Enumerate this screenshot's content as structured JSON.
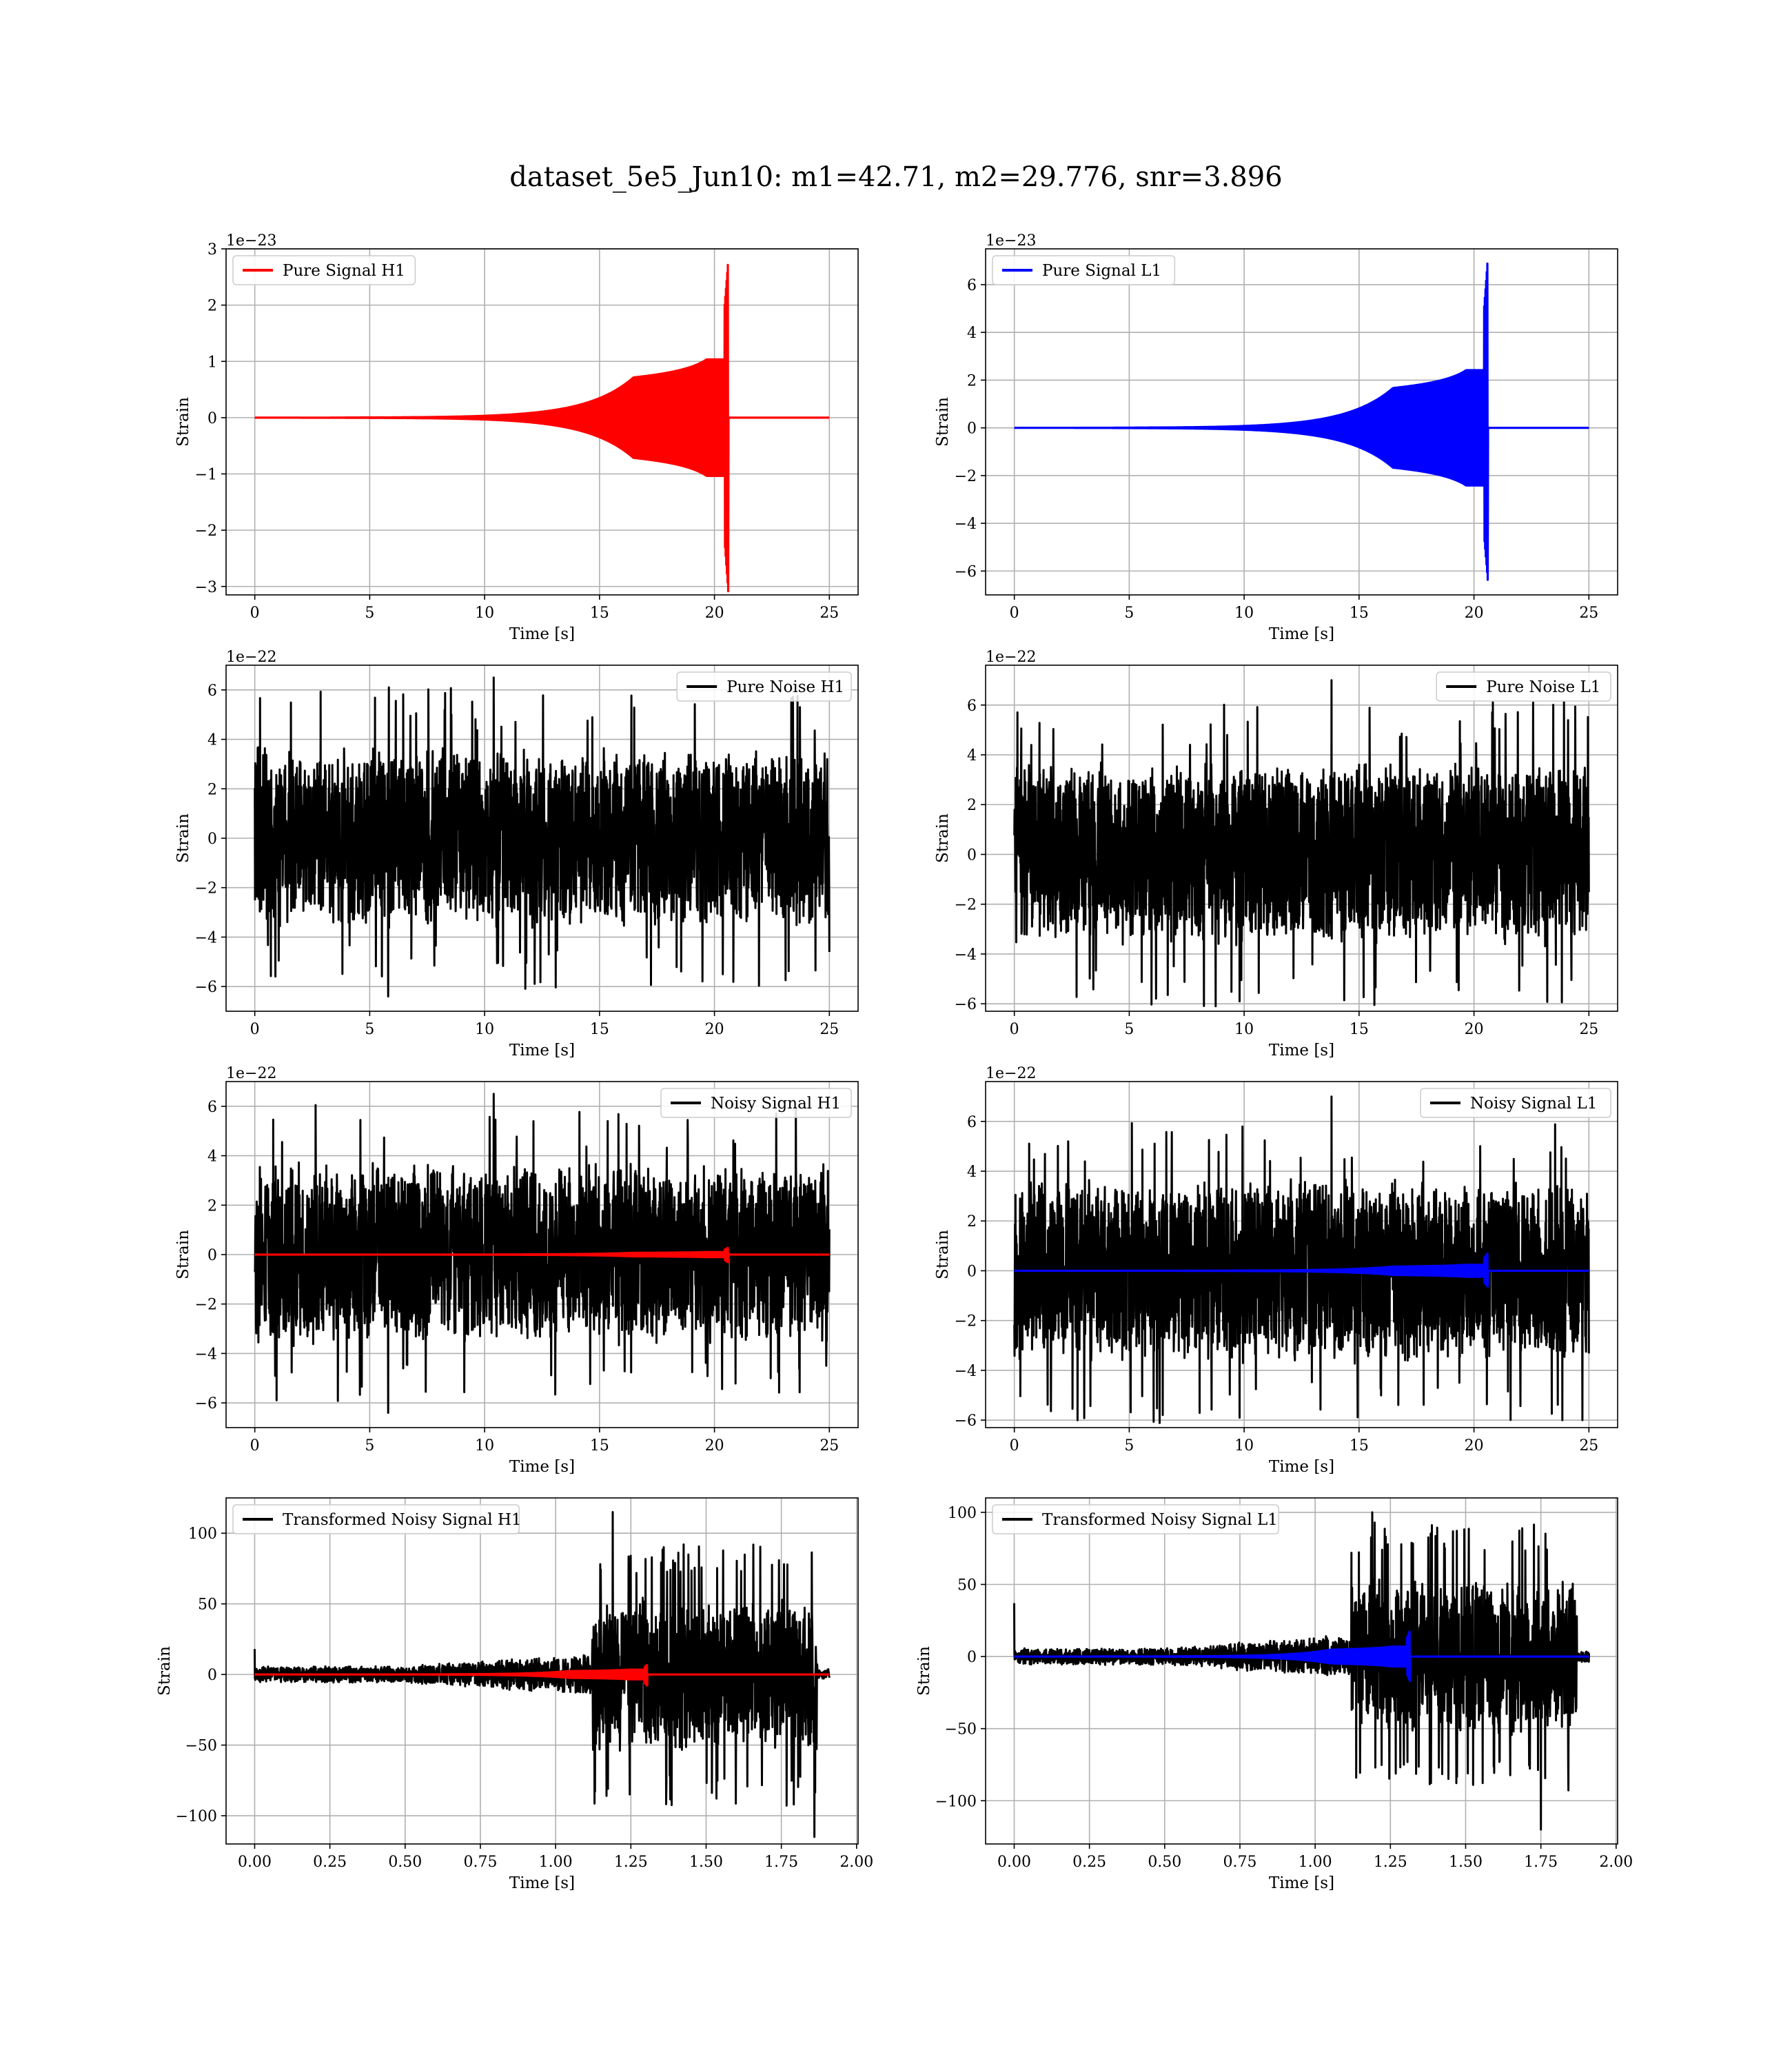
{
  "figure": {
    "title": "dataset_5e5_Jun10: m1=42.71, m2=29.776, snr=3.896"
  },
  "colors": {
    "h1": "#ff0000",
    "l1": "#0000ff",
    "noise": "#000000",
    "grid": "#b0b0b0"
  },
  "chart_data": [
    {
      "id": "pure-signal-h1",
      "type": "line",
      "xlabel": "Time [s]",
      "ylabel": "Strain",
      "offset_label": "1e−23",
      "xlim": [
        -1.25,
        26.25
      ],
      "ylim": [
        -3.15,
        3.0
      ],
      "xticks": [
        0,
        5,
        10,
        15,
        20,
        25
      ],
      "xtick_labels": [
        "0",
        "5",
        "10",
        "15",
        "20",
        "25"
      ],
      "yticks": [
        -3,
        -2,
        -1,
        0,
        1,
        2,
        3
      ],
      "ytick_labels": [
        "−3",
        "−2",
        "−1",
        "0",
        "1",
        "2",
        "3"
      ],
      "legend": {
        "label": "Pure Signal H1",
        "position": "upper-left",
        "color": "#ff0000"
      },
      "series": [
        {
          "name": "Pure Signal H1",
          "kind": "chirp",
          "color": "#ff0000",
          "t_start": 0,
          "t_end": 25,
          "t_merge": 20.6,
          "peak_pos": 2.8,
          "peak_neg": -3.1,
          "plateau": 0.9
        }
      ]
    },
    {
      "id": "pure-signal-l1",
      "type": "line",
      "xlabel": "Time [s]",
      "ylabel": "Strain",
      "offset_label": "1e−23",
      "xlim": [
        -1.25,
        26.25
      ],
      "ylim": [
        -7.0,
        7.5
      ],
      "xticks": [
        0,
        5,
        10,
        15,
        20,
        25
      ],
      "xtick_labels": [
        "0",
        "5",
        "10",
        "15",
        "20",
        "25"
      ],
      "yticks": [
        -6,
        -4,
        -2,
        0,
        2,
        4,
        6
      ],
      "ytick_labels": [
        "−6",
        "−4",
        "−2",
        "0",
        "2",
        "4",
        "6"
      ],
      "legend": {
        "label": "Pure Signal L1",
        "position": "upper-left",
        "color": "#0000ff"
      },
      "series": [
        {
          "name": "Pure Signal L1",
          "kind": "chirp",
          "color": "#0000ff",
          "t_start": 0,
          "t_end": 25,
          "t_merge": 20.6,
          "peak_pos": 7.1,
          "peak_neg": -6.4,
          "plateau": 2.1
        }
      ]
    },
    {
      "id": "pure-noise-h1",
      "type": "line",
      "xlabel": "Time [s]",
      "ylabel": "Strain",
      "offset_label": "1e−22",
      "xlim": [
        -1.25,
        26.25
      ],
      "ylim": [
        -7.0,
        7.0
      ],
      "xticks": [
        0,
        5,
        10,
        15,
        20,
        25
      ],
      "xtick_labels": [
        "0",
        "5",
        "10",
        "15",
        "20",
        "25"
      ],
      "yticks": [
        -6,
        -4,
        -2,
        0,
        2,
        4,
        6
      ],
      "ytick_labels": [
        "−6",
        "−4",
        "−2",
        "0",
        "2",
        "4",
        "6"
      ],
      "legend": {
        "label": "Pure Noise H1",
        "position": "upper-right",
        "color": "#000000"
      },
      "series": [
        {
          "name": "Pure Noise H1",
          "kind": "noise",
          "color": "#000000",
          "t_start": 0,
          "t_end": 25,
          "band": 3.6,
          "max": 6.5,
          "min": -6.4,
          "max_at": 10.4,
          "min_at": 5.8
        }
      ]
    },
    {
      "id": "pure-noise-l1",
      "type": "line",
      "xlabel": "Time [s]",
      "ylabel": "Strain",
      "offset_label": "1e−22",
      "xlim": [
        -1.25,
        26.25
      ],
      "ylim": [
        -6.3,
        7.6
      ],
      "xticks": [
        0,
        5,
        10,
        15,
        20,
        25
      ],
      "xtick_labels": [
        "0",
        "5",
        "10",
        "15",
        "20",
        "25"
      ],
      "yticks": [
        -6,
        -4,
        -2,
        0,
        2,
        4,
        6
      ],
      "ytick_labels": [
        "−6",
        "−4",
        "−2",
        "0",
        "2",
        "4",
        "6"
      ],
      "legend": {
        "label": "Pure Noise L1",
        "position": "upper-right",
        "color": "#000000"
      },
      "series": [
        {
          "name": "Pure Noise L1",
          "kind": "noise",
          "color": "#000000",
          "t_start": 0,
          "t_end": 25,
          "band": 3.6,
          "max": 7.0,
          "min": -5.9,
          "max_at": 13.8,
          "min_at": 9.8
        }
      ]
    },
    {
      "id": "noisy-signal-h1",
      "type": "line",
      "xlabel": "Time [s]",
      "ylabel": "Strain",
      "offset_label": "1e−22",
      "xlim": [
        -1.25,
        26.25
      ],
      "ylim": [
        -7.0,
        7.0
      ],
      "xticks": [
        0,
        5,
        10,
        15,
        20,
        25
      ],
      "xtick_labels": [
        "0",
        "5",
        "10",
        "15",
        "20",
        "25"
      ],
      "yticks": [
        -6,
        -4,
        -2,
        0,
        2,
        4,
        6
      ],
      "ytick_labels": [
        "−6",
        "−4",
        "−2",
        "0",
        "2",
        "4",
        "6"
      ],
      "legend": {
        "label": "Noisy Signal H1",
        "position": "upper-right",
        "color": "#000000"
      },
      "series": [
        {
          "name": "Noisy Signal H1",
          "kind": "noise",
          "color": "#000000",
          "t_start": 0,
          "t_end": 25,
          "band": 3.6,
          "max": 6.5,
          "min": -6.4,
          "max_at": 10.4,
          "min_at": 5.8
        },
        {
          "name": "Pure Signal H1",
          "kind": "chirp",
          "color": "#ff0000",
          "t_start": 0,
          "t_end": 25,
          "t_merge": 20.6,
          "peak_pos": 0.28,
          "peak_neg": -0.31,
          "plateau": 0.09
        }
      ]
    },
    {
      "id": "noisy-signal-l1",
      "type": "line",
      "xlabel": "Time [s]",
      "ylabel": "Strain",
      "offset_label": "1e−22",
      "xlim": [
        -1.25,
        26.25
      ],
      "ylim": [
        -6.3,
        7.6
      ],
      "xticks": [
        0,
        5,
        10,
        15,
        20,
        25
      ],
      "xtick_labels": [
        "0",
        "5",
        "10",
        "15",
        "20",
        "25"
      ],
      "yticks": [
        -6,
        -4,
        -2,
        0,
        2,
        4,
        6
      ],
      "ytick_labels": [
        "−6",
        "−4",
        "−2",
        "0",
        "2",
        "4",
        "6"
      ],
      "legend": {
        "label": "Noisy Signal L1",
        "position": "upper-right",
        "color": "#000000"
      },
      "series": [
        {
          "name": "Noisy Signal L1",
          "kind": "noise",
          "color": "#000000",
          "t_start": 0,
          "t_end": 25,
          "band": 3.6,
          "max": 7.0,
          "min": -5.9,
          "max_at": 13.8,
          "min_at": 9.8
        },
        {
          "name": "Pure Signal L1",
          "kind": "chirp",
          "color": "#0000ff",
          "t_start": 0,
          "t_end": 25,
          "t_merge": 20.6,
          "peak_pos": 0.71,
          "peak_neg": -0.64,
          "plateau": 0.21
        }
      ]
    },
    {
      "id": "transformed-noisy-signal-h1",
      "type": "line",
      "xlabel": "Time [s]",
      "ylabel": "Strain",
      "offset_label": "",
      "xlim": [
        -0.095,
        2.005
      ],
      "ylim": [
        -120,
        125
      ],
      "xticks": [
        0,
        0.25,
        0.5,
        0.75,
        1.0,
        1.25,
        1.5,
        1.75,
        2.0
      ],
      "xtick_labels": [
        "0.00",
        "0.25",
        "0.50",
        "0.75",
        "1.00",
        "1.25",
        "1.50",
        "1.75",
        "2.00"
      ],
      "yticks": [
        -100,
        -50,
        0,
        50,
        100
      ],
      "ytick_labels": [
        "−100",
        "−50",
        "0",
        "50",
        "100"
      ],
      "legend": {
        "label": "Transformed Noisy Signal H1",
        "position": "upper-left",
        "color": "#000000"
      },
      "series": [
        {
          "name": "Transformed Noisy Signal H1",
          "kind": "whitened",
          "color": "#000000",
          "t_start": 0,
          "t_end": 1.91,
          "low_band": 6,
          "ramp_start": 0.5,
          "high_start": 1.12,
          "high_end": 1.87,
          "high_band": 55,
          "max": 115,
          "min": -115,
          "max_at": 1.19,
          "min_at": 1.86,
          "start_spike": 18
        },
        {
          "name": "Pure Signal H1",
          "kind": "chirp",
          "color": "#ff0000",
          "t_start": 0,
          "t_end": 1.91,
          "t_merge": 1.305,
          "peak_pos": 7,
          "peak_neg": -8,
          "plateau": 3
        }
      ]
    },
    {
      "id": "transformed-noisy-signal-l1",
      "type": "line",
      "xlabel": "Time [s]",
      "ylabel": "Strain",
      "offset_label": "",
      "xlim": [
        -0.095,
        2.005
      ],
      "ylim": [
        -130,
        110
      ],
      "xticks": [
        0,
        0.25,
        0.5,
        0.75,
        1.0,
        1.25,
        1.5,
        1.75,
        2.0
      ],
      "xtick_labels": [
        "0.00",
        "0.25",
        "0.50",
        "0.75",
        "1.00",
        "1.25",
        "1.50",
        "1.75",
        "2.00"
      ],
      "yticks": [
        -100,
        -50,
        0,
        50,
        100
      ],
      "ytick_labels": [
        "−100",
        "−50",
        "0",
        "50",
        "100"
      ],
      "legend": {
        "label": "Transformed Noisy Signal L1",
        "position": "upper-left",
        "color": "#000000"
      },
      "series": [
        {
          "name": "Transformed Noisy Signal L1",
          "kind": "whitened",
          "color": "#000000",
          "t_start": 0,
          "t_end": 1.91,
          "low_band": 6,
          "ramp_start": 0.5,
          "high_start": 1.12,
          "high_end": 1.87,
          "high_band": 55,
          "max": 100,
          "min": -120,
          "max_at": 1.19,
          "min_at": 1.75,
          "start_spike": 37
        },
        {
          "name": "Pure Signal L1",
          "kind": "chirp",
          "color": "#0000ff",
          "t_start": 0,
          "t_end": 1.91,
          "t_merge": 1.315,
          "peak_pos": 18,
          "peak_neg": -17,
          "plateau": 6
        }
      ]
    }
  ]
}
